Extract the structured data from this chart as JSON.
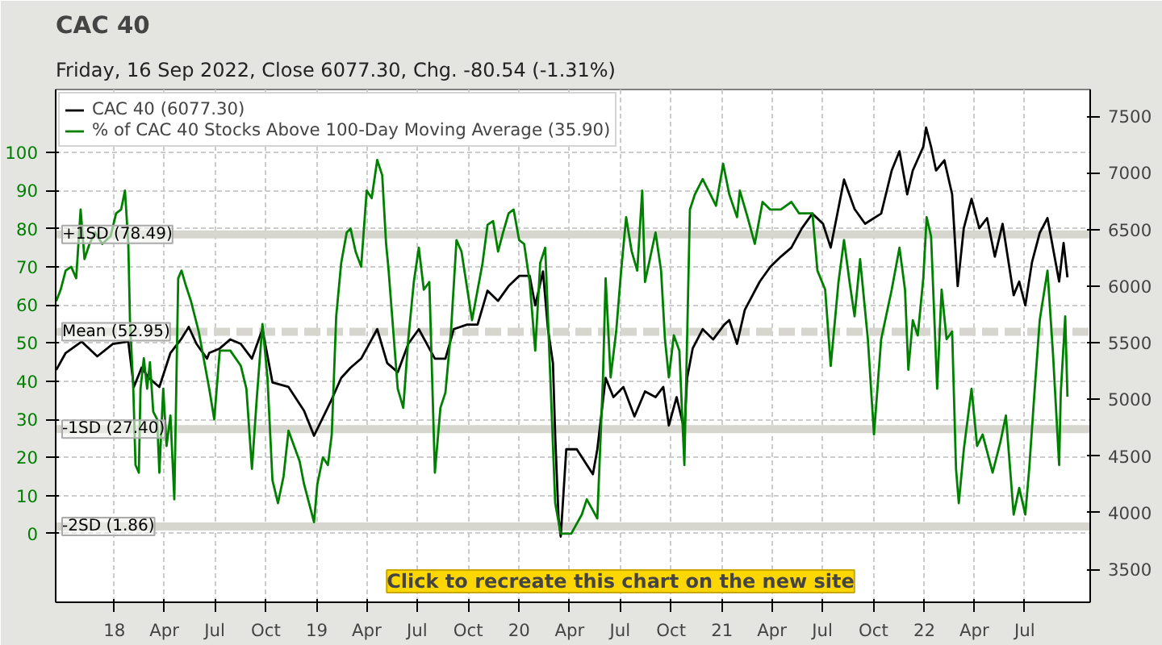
{
  "chart_data": {
    "type": "line",
    "title": "CAC 40",
    "subtitle": "Friday, 16 Sep 2022, Close 6077.30, Chg. -80.54 (-1.31%)",
    "xlim": [
      "2017-09-17",
      "2022-10-27"
    ],
    "xticks": [
      {
        "value": "2018-01-01",
        "label": "18"
      },
      {
        "value": "2018-04-01",
        "label": "Apr"
      },
      {
        "value": "2018-07-01",
        "label": "Jul"
      },
      {
        "value": "2018-10-01",
        "label": "Oct"
      },
      {
        "value": "2019-01-01",
        "label": "19"
      },
      {
        "value": "2019-04-01",
        "label": "Apr"
      },
      {
        "value": "2019-07-01",
        "label": "Jul"
      },
      {
        "value": "2019-10-01",
        "label": "Oct"
      },
      {
        "value": "2020-01-01",
        "label": "20"
      },
      {
        "value": "2020-04-01",
        "label": "Apr"
      },
      {
        "value": "2020-07-01",
        "label": "Jul"
      },
      {
        "value": "2020-10-01",
        "label": "Oct"
      },
      {
        "value": "2021-01-01",
        "label": "21"
      },
      {
        "value": "2021-04-01",
        "label": "Apr"
      },
      {
        "value": "2021-07-01",
        "label": "Jul"
      },
      {
        "value": "2021-10-01",
        "label": "Oct"
      },
      {
        "value": "2022-01-01",
        "label": "22"
      },
      {
        "value": "2022-04-01",
        "label": "Apr"
      },
      {
        "value": "2022-07-01",
        "label": "Jul"
      }
    ],
    "ylim": [
      -18,
      116.5
    ],
    "yticks": [
      0,
      10,
      20,
      30,
      40,
      50,
      60,
      70,
      80,
      90,
      100
    ],
    "y2lim": [
      3210,
      7735
    ],
    "y2ticks": [
      3500,
      4000,
      4500,
      5000,
      5500,
      6000,
      6500,
      7000,
      7500
    ],
    "grid": true,
    "legend": "top left",
    "ref_lines": [
      {
        "axis": "y",
        "value": 78.49,
        "label": "+1SD (78.49)",
        "color": "#d6d6ce",
        "line_style": "solid"
      },
      {
        "axis": "y",
        "value": 52.95,
        "label": "Mean (52.95)",
        "color": "#d6d6ce",
        "line_style": "dashed"
      },
      {
        "axis": "y",
        "value": 27.4,
        "label": "-1SD (27.40)",
        "color": "#d6d6ce",
        "line_style": "solid"
      },
      {
        "axis": "y",
        "value": 1.86,
        "label": "-2SD (1.86)",
        "color": "#d6d6ce",
        "line_style": "solid"
      }
    ],
    "annotations": [
      "Click to recreate this chart on the new site"
    ],
    "series": [
      {
        "name": "CAC 40 (6077.30)",
        "color": "#000000",
        "axis": "y2",
        "x": [
          "2017-09-18",
          "2017-10-05",
          "2017-11-03",
          "2017-12-01",
          "2017-12-29",
          "2018-01-26",
          "2018-02-05",
          "2018-02-19",
          "2018-03-04",
          "2018-03-23",
          "2018-04-12",
          "2018-05-01",
          "2018-05-15",
          "2018-05-29",
          "2018-06-17",
          "2018-06-21",
          "2018-07-10",
          "2018-07-29",
          "2018-08-17",
          "2018-09-06",
          "2018-09-25",
          "2018-10-13",
          "2018-11-11",
          "2018-12-09",
          "2018-12-27",
          "2019-01-26",
          "2019-02-14",
          "2019-03-03",
          "2019-03-22",
          "2019-04-10",
          "2019-04-20",
          "2019-05-08",
          "2019-05-27",
          "2019-06-15",
          "2019-07-04",
          "2019-08-02",
          "2019-08-21",
          "2019-09-05",
          "2019-09-29",
          "2019-10-18",
          "2019-11-05",
          "2019-11-24",
          "2019-12-13",
          "2020-01-01",
          "2020-01-20",
          "2020-01-30",
          "2020-02-13",
          "2020-02-22",
          "2020-03-02",
          "2020-03-06",
          "2020-03-12",
          "2020-03-16",
          "2020-03-26",
          "2020-04-14",
          "2020-05-13",
          "2020-05-21",
          "2020-05-31",
          "2020-06-05",
          "2020-06-19",
          "2020-07-07",
          "2020-07-27",
          "2020-08-15",
          "2020-09-03",
          "2020-09-17",
          "2020-09-27",
          "2020-10-11",
          "2020-10-25",
          "2020-10-30",
          "2020-11-09",
          "2020-11-27",
          "2020-12-16",
          "2021-01-05",
          "2021-01-14",
          "2021-01-28",
          "2021-02-11",
          "2021-03-10",
          "2021-03-29",
          "2021-04-17",
          "2021-05-06",
          "2021-05-25",
          "2021-06-13",
          "2021-07-02",
          "2021-07-16",
          "2021-08-09",
          "2021-08-28",
          "2021-09-16",
          "2021-10-15",
          "2021-11-03",
          "2021-11-17",
          "2021-12-01",
          "2021-12-11",
          "2021-12-30",
          "2022-01-04",
          "2022-01-13",
          "2022-01-22",
          "2022-02-06",
          "2022-02-20",
          "2022-03-02",
          "2022-03-13",
          "2022-03-27",
          "2022-04-10",
          "2022-04-24",
          "2022-05-08",
          "2022-05-22",
          "2022-06-11",
          "2022-06-21",
          "2022-07-02",
          "2022-07-14",
          "2022-07-28",
          "2022-08-11",
          "2022-09-01",
          "2022-09-09",
          "2022-09-16"
        ],
        "values": [
          5260,
          5410,
          5510,
          5380,
          5490,
          5510,
          5110,
          5280,
          5190,
          5110,
          5410,
          5530,
          5640,
          5490,
          5360,
          5410,
          5450,
          5530,
          5490,
          5360,
          5620,
          5150,
          5110,
          4900,
          4680,
          4980,
          5190,
          5280,
          5360,
          5530,
          5620,
          5320,
          5240,
          5490,
          5620,
          5360,
          5360,
          5620,
          5660,
          5660,
          5960,
          5870,
          6000,
          6090,
          6090,
          5830,
          6130,
          5620,
          5320,
          4680,
          3960,
          3790,
          4560,
          4560,
          4340,
          4560,
          4980,
          5190,
          5020,
          5110,
          4850,
          5070,
          5020,
          5110,
          4770,
          5020,
          4730,
          5190,
          5450,
          5620,
          5530,
          5660,
          5700,
          5490,
          5790,
          6040,
          6170,
          6260,
          6340,
          6510,
          6640,
          6550,
          6340,
          6940,
          6680,
          6550,
          6640,
          7020,
          7190,
          6810,
          7020,
          7230,
          7400,
          7230,
          7020,
          7110,
          6810,
          6000,
          6510,
          6770,
          6510,
          6600,
          6260,
          6550,
          5920,
          6040,
          5830,
          6210,
          6470,
          6600,
          6040,
          6380,
          6077.3
        ]
      },
      {
        "name": "% of CAC 40 Stocks Above 100-Day Moving Average (35.90)",
        "color": "#008000",
        "x": [
          "2017-09-18",
          "2017-09-26",
          "2017-10-05",
          "2017-10-15",
          "2017-10-24",
          "2017-11-01",
          "2017-11-08",
          "2017-11-17",
          "2017-11-27",
          "2017-12-10",
          "2017-12-25",
          "2018-01-04",
          "2018-01-13",
          "2018-01-20",
          "2018-01-26",
          "2018-01-29",
          "2018-02-04",
          "2018-02-08",
          "2018-02-14",
          "2018-02-17",
          "2018-02-23",
          "2018-03-01",
          "2018-03-06",
          "2018-03-12",
          "2018-03-19",
          "2018-03-23",
          "2018-03-30",
          "2018-04-05",
          "2018-04-12",
          "2018-04-19",
          "2018-04-26",
          "2018-05-02",
          "2018-05-10",
          "2018-05-19",
          "2018-06-02",
          "2018-06-21",
          "2018-06-30",
          "2018-07-10",
          "2018-07-29",
          "2018-08-17",
          "2018-08-27",
          "2018-09-06",
          "2018-09-15",
          "2018-09-25",
          "2018-10-04",
          "2018-10-13",
          "2018-10-23",
          "2018-11-02",
          "2018-11-11",
          "2018-12-01",
          "2018-12-09",
          "2018-12-27",
          "2019-01-02",
          "2019-01-12",
          "2019-01-21",
          "2019-01-28",
          "2019-02-05",
          "2019-02-14",
          "2019-02-24",
          "2019-03-03",
          "2019-03-12",
          "2019-03-22",
          "2019-04-01",
          "2019-04-10",
          "2019-04-20",
          "2019-04-29",
          "2019-05-06",
          "2019-05-10",
          "2019-05-27",
          "2019-06-06",
          "2019-06-15",
          "2019-06-25",
          "2019-07-04",
          "2019-07-13",
          "2019-07-23",
          "2019-08-02",
          "2019-08-12",
          "2019-08-21",
          "2019-08-31",
          "2019-09-10",
          "2019-09-19",
          "2019-10-08",
          "2019-10-27",
          "2019-11-05",
          "2019-11-15",
          "2019-11-24",
          "2019-12-03",
          "2019-12-13",
          "2019-12-22",
          "2020-01-01",
          "2020-01-10",
          "2020-01-20",
          "2020-01-30",
          "2020-02-08",
          "2020-02-17",
          "2020-02-27",
          "2020-03-06",
          "2020-03-16",
          "2020-04-04",
          "2020-04-23",
          "2020-05-02",
          "2020-05-21",
          "2020-05-31",
          "2020-06-05",
          "2020-06-14",
          "2020-06-24",
          "2020-07-03",
          "2020-07-12",
          "2020-07-22",
          "2020-08-01",
          "2020-08-10",
          "2020-08-15",
          "2020-09-03",
          "2020-09-13",
          "2020-09-20",
          "2020-09-27",
          "2020-10-06",
          "2020-10-16",
          "2020-10-25",
          "2020-11-04",
          "2020-11-13",
          "2020-11-27",
          "2020-12-11",
          "2020-12-21",
          "2021-01-03",
          "2021-01-14",
          "2021-01-28",
          "2021-02-02",
          "2021-02-16",
          "2021-03-01",
          "2021-03-15",
          "2021-03-29",
          "2021-04-17",
          "2021-05-06",
          "2021-05-20",
          "2021-06-13",
          "2021-06-22",
          "2021-07-06",
          "2021-07-16",
          "2021-07-30",
          "2021-08-09",
          "2021-08-19",
          "2021-08-28",
          "2021-09-07",
          "2021-09-21",
          "2021-10-02",
          "2021-10-15",
          "2021-11-03",
          "2021-11-17",
          "2021-11-27",
          "2021-12-03",
          "2021-12-11",
          "2021-12-20",
          "2021-12-30",
          "2022-01-05",
          "2022-01-13",
          "2022-01-24",
          "2022-02-01",
          "2022-02-10",
          "2022-02-20",
          "2022-02-27",
          "2022-03-04",
          "2022-03-13",
          "2022-03-27",
          "2022-04-06",
          "2022-04-16",
          "2022-05-04",
          "2022-05-18",
          "2022-05-28",
          "2022-06-11",
          "2022-06-21",
          "2022-07-02",
          "2022-07-09",
          "2022-07-19",
          "2022-07-28",
          "2022-08-11",
          "2022-08-21",
          "2022-09-01",
          "2022-09-04",
          "2022-09-12",
          "2022-09-16"
        ],
        "values": [
          61,
          64,
          69,
          70,
          67,
          85,
          72,
          76,
          79,
          76,
          78,
          84,
          85,
          90,
          76,
          56,
          38,
          18,
          16,
          38,
          46,
          38,
          45,
          32,
          30,
          16,
          38,
          23,
          31,
          9,
          67,
          69,
          65,
          61,
          53,
          38,
          30,
          48,
          48,
          44,
          38,
          17,
          36,
          55,
          41,
          14,
          8,
          15,
          27,
          19,
          13,
          3,
          13,
          20,
          18,
          26,
          57,
          71,
          79,
          80,
          74,
          70,
          90,
          88,
          98,
          94,
          76,
          70,
          38,
          33,
          51,
          66,
          75,
          64,
          66,
          16,
          33,
          37,
          53,
          77,
          74,
          56,
          71,
          81,
          82,
          74,
          79,
          84,
          85,
          77,
          76,
          66,
          48,
          71,
          75,
          38,
          8,
          0,
          0,
          5,
          9,
          4,
          40,
          67,
          41,
          53,
          69,
          83,
          74,
          69,
          90,
          66,
          79,
          69,
          51,
          41,
          52,
          48,
          18,
          85,
          89,
          93,
          89,
          86,
          97,
          89,
          83,
          90,
          83,
          76,
          87,
          85,
          85,
          87,
          84,
          84,
          69,
          64,
          44,
          66,
          77,
          66,
          57,
          72,
          51,
          26,
          51,
          64,
          75,
          64,
          43,
          56,
          52,
          67,
          83,
          78,
          38,
          64,
          51,
          53,
          17,
          8,
          22,
          38,
          23,
          26,
          16,
          24,
          31,
          5,
          12,
          5,
          17,
          38,
          56,
          69,
          47,
          18,
          37,
          57,
          35.9
        ]
      }
    ]
  }
}
